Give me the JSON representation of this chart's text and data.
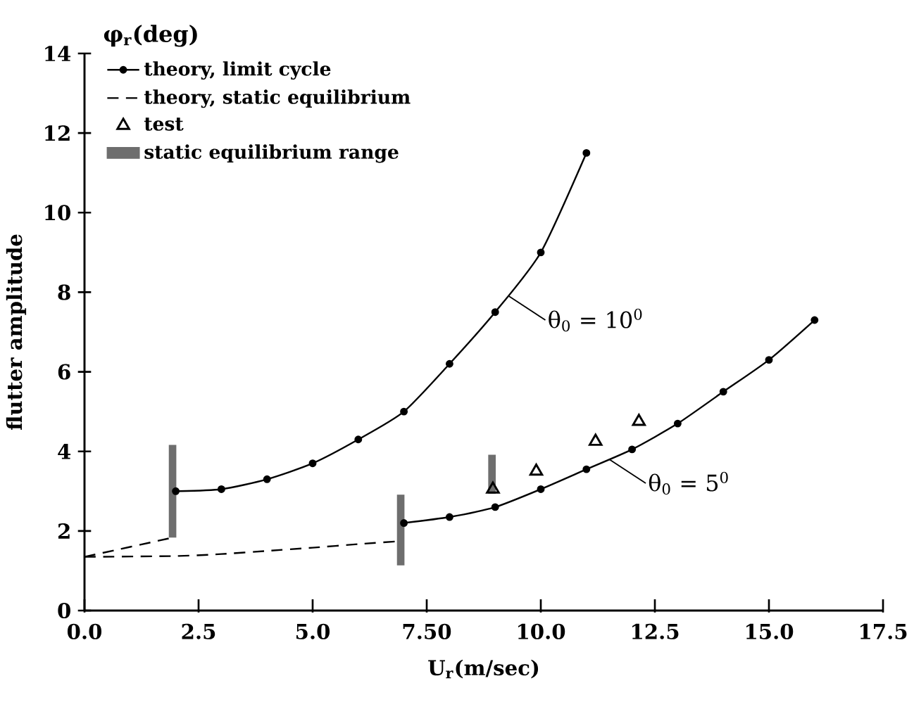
{
  "chart_data": {
    "type": "line",
    "xlabel": "U$_{r}$(m/sec)",
    "ylabel": "flutter amplitude",
    "xlim": [
      0,
      17.5
    ],
    "ylim": [
      0,
      14
    ],
    "xticks": [
      {
        "value": 0,
        "label": "0.0"
      },
      {
        "value": 2.5,
        "label": "2.5"
      },
      {
        "value": 5,
        "label": "5.0"
      },
      {
        "value": 7.5,
        "label": "7.50"
      },
      {
        "value": 10,
        "label": "10.0"
      },
      {
        "value": 12.5,
        "label": "12.5"
      },
      {
        "value": 15,
        "label": "15.0"
      },
      {
        "value": 17.5,
        "label": "17.5"
      }
    ],
    "yticks": [
      0,
      2,
      4,
      6,
      8,
      10,
      12,
      14
    ],
    "grid": false,
    "legend": "top left",
    "annotations": [
      "φ$_{r}$(deg)",
      {
        "text": "θ$_{0}$ = 10$^{0}$",
        "x": 9.3,
        "y": 7.9
      },
      {
        "text": "θ$_{0}$ = 5$^{0}$",
        "x": 11.5,
        "y": 3.8
      }
    ],
    "series": [
      {
        "name": "theory, limit cycle",
        "color": "#000000",
        "line_style": "solid",
        "marker": "circle",
        "x": [
          2,
          3,
          4,
          5,
          6,
          7,
          8,
          9,
          10,
          11
        ],
        "values": [
          3.0,
          3.05,
          3.3,
          3.7,
          4.3,
          5.0,
          6.2,
          7.5,
          9.0,
          11.5
        ]
      },
      {
        "color": "#000000",
        "line_style": "solid",
        "marker": "circle",
        "x": [
          7,
          8,
          9,
          10,
          11,
          12,
          13,
          14,
          15,
          16
        ],
        "values": [
          2.2,
          2.35,
          2.6,
          3.05,
          3.55,
          4.05,
          4.7,
          5.5,
          6.3,
          7.3
        ]
      },
      {
        "name": "theory, static equilibrium",
        "color": "#000000",
        "line_style": "dashed",
        "marker": "none",
        "x": [
          0,
          2
        ],
        "values": [
          1.35,
          1.85
        ]
      },
      {
        "color": "#000000",
        "line_style": "dashed",
        "marker": "none",
        "x": [
          0,
          2,
          3,
          4,
          5,
          6,
          7
        ],
        "values": [
          1.35,
          1.37,
          1.42,
          1.5,
          1.58,
          1.67,
          1.75
        ]
      },
      {
        "name": "test",
        "type": "scatter",
        "color": "#000000",
        "marker": "triangle",
        "x": [
          8.95,
          9.9,
          11.2,
          12.15
        ],
        "values": [
          3.05,
          3.5,
          4.25,
          4.75
        ]
      },
      {
        "name": "static equilibrium range",
        "type": "bar",
        "color": "#6e6e6e",
        "x": [
          2,
          7,
          9
        ],
        "base": [
          1.85,
          1.15,
          2.95
        ],
        "values": [
          2.3,
          1.75,
          0.95
        ]
      }
    ]
  }
}
